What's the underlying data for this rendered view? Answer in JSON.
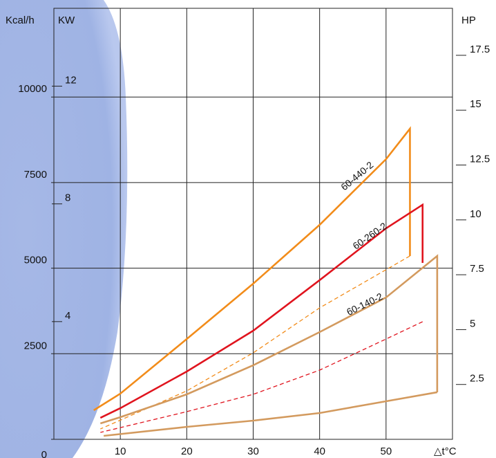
{
  "chart_data": {
    "type": "line",
    "x_label": "△t°C",
    "y_label": "Kcal/h",
    "y_axis2_label": "KW",
    "y_axis3_label": "HP",
    "xlim": [
      0,
      60
    ],
    "xticks": [
      10,
      20,
      30,
      40,
      50
    ],
    "ylim": [
      0,
      12500
    ],
    "yticks": [
      0,
      2500,
      5000,
      7500,
      10000
    ],
    "kw_lim": [
      0,
      14.54
    ],
    "kw_ticks": [
      4,
      8,
      12
    ],
    "hp_lim": [
      0,
      19.5
    ],
    "hp_ticks": [
      2.5,
      5,
      7.5,
      10,
      12.5,
      15,
      17.5
    ],
    "grid": true,
    "series": [
      {
        "name": "60-440-2",
        "color": "#f28c1a",
        "dash": false,
        "x": [
          6,
          10,
          20,
          30,
          40,
          50,
          53.6,
          53.6
        ],
        "values": [
          849,
          1334,
          2930,
          4547,
          6265,
          8185,
          9074,
          5356
        ]
      },
      {
        "color": "#f28c1a",
        "dash": true,
        "x": [
          53.6,
          40,
          30,
          20,
          7
        ],
        "values": [
          5356,
          3840,
          2526,
          1415,
          303
        ]
      },
      {
        "name": "60-260-2",
        "color": "#e0141e",
        "dash": false,
        "x": [
          7,
          10,
          20,
          30,
          40,
          50,
          55.5,
          55.5
        ],
        "values": [
          627,
          910,
          1981,
          3173,
          4649,
          6164,
          6852,
          5154
        ]
      },
      {
        "color": "#e0141e",
        "dash": true,
        "x": [
          55.5,
          50,
          40,
          30,
          20,
          7
        ],
        "values": [
          3436,
          2930,
          2021,
          1314,
          808,
          202
        ]
      },
      {
        "name": "60-140-2",
        "color": "#d39a5e",
        "dash": false,
        "x": [
          7,
          10,
          20,
          30,
          40,
          50,
          57.7,
          57.7
        ],
        "values": [
          465,
          647,
          1314,
          2163,
          3133,
          4144,
          5356,
          1375
        ]
      },
      {
        "color": "#d39a5e",
        "dash": false,
        "x": [
          57.7,
          50,
          40,
          30,
          20,
          7.5
        ],
        "values": [
          1375,
          1112,
          768,
          546,
          364,
          101
        ]
      }
    ]
  }
}
